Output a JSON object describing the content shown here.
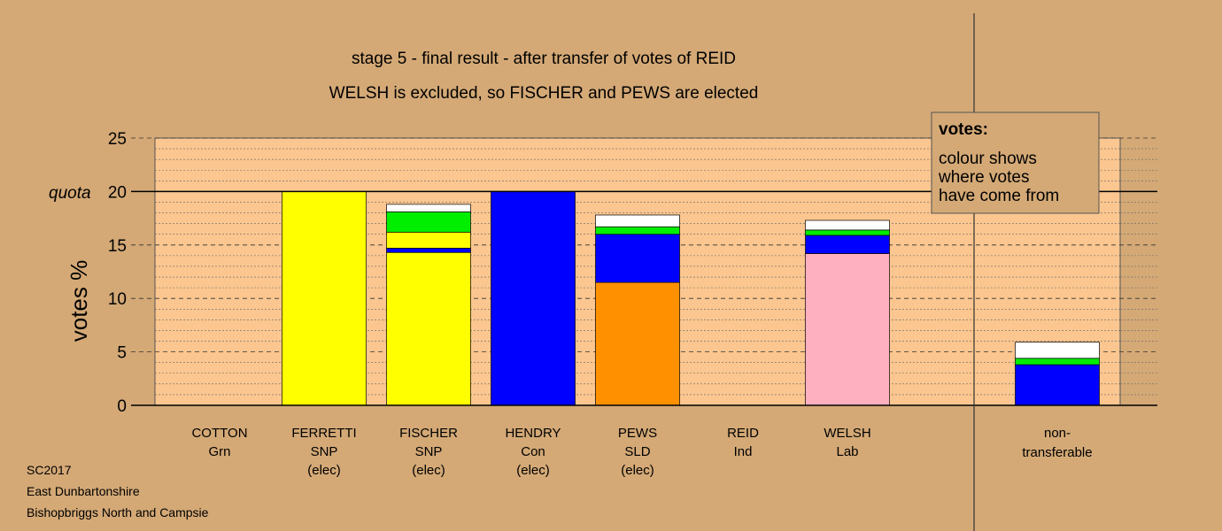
{
  "title": {
    "line1": "stage 5 - final result - after transfer of votes of REID",
    "line2": "WELSH is excluded, so FISCHER and PEWS are elected"
  },
  "footer": {
    "line1": "SC2017",
    "line2": "East Dunbartonshire",
    "line3": "Bishopbriggs North and Campsie"
  },
  "legend_box": {
    "title": "votes:",
    "lines": [
      "colour shows",
      "where votes",
      "have come from"
    ]
  },
  "colors": {
    "background": "#d4a976",
    "plot_area": "#fbc68f",
    "SNP": "#ffff00",
    "Con": "#0000ff",
    "LD": "#ff9000",
    "Lab": "#ffb0c0",
    "Grn": "#00ee00",
    "Ind": "#ffffff",
    "sep": "#000080"
  },
  "chart_data": {
    "type": "bar",
    "stacked": true,
    "ylabel": "votes %",
    "ylim": [
      0,
      25
    ],
    "yticks": [
      0,
      5,
      10,
      15,
      20,
      25
    ],
    "quota": {
      "value": 20,
      "label": "quota"
    },
    "grid": true,
    "candidates": [
      {
        "name": "COTTON",
        "party": "Grn",
        "status": "",
        "segments": []
      },
      {
        "name": "FERRETTI",
        "party": "SNP",
        "status": "(elec)",
        "segments": [
          {
            "source": "SNP",
            "value": 20.0
          }
        ]
      },
      {
        "name": "FISCHER",
        "party": "SNP",
        "status": "(elec)",
        "segments": [
          {
            "source": "SNP",
            "value": 14.3
          },
          {
            "source": "Con",
            "value": 0.4
          },
          {
            "source": "SNP",
            "value": 1.5
          },
          {
            "source": "Grn",
            "value": 1.9
          },
          {
            "source": "Ind",
            "value": 0.7
          }
        ]
      },
      {
        "name": "HENDRY",
        "party": "Con",
        "status": "(elec)",
        "segments": [
          {
            "source": "Con",
            "value": 20.0
          }
        ]
      },
      {
        "name": "PEWS",
        "party": "SLD",
        "status": "(elec)",
        "segments": [
          {
            "source": "LD",
            "value": 11.5
          },
          {
            "source": "Con",
            "value": 4.5
          },
          {
            "source": "Grn",
            "value": 0.7
          },
          {
            "source": "Ind",
            "value": 1.1
          }
        ]
      },
      {
        "name": "REID",
        "party": "Ind",
        "status": "",
        "segments": []
      },
      {
        "name": "WELSH",
        "party": "Lab",
        "status": "",
        "segments": [
          {
            "source": "Lab",
            "value": 14.2
          },
          {
            "source": "Con",
            "value": 1.7
          },
          {
            "source": "Grn",
            "value": 0.5
          },
          {
            "source": "Ind",
            "value": 0.9
          }
        ]
      }
    ],
    "nontransferable": {
      "label_line1": "non-",
      "label_line2": "transferable",
      "segments": [
        {
          "source": "Con",
          "value": 3.8
        },
        {
          "source": "Grn",
          "value": 0.6
        },
        {
          "source": "Ind",
          "value": 1.5
        }
      ]
    }
  }
}
